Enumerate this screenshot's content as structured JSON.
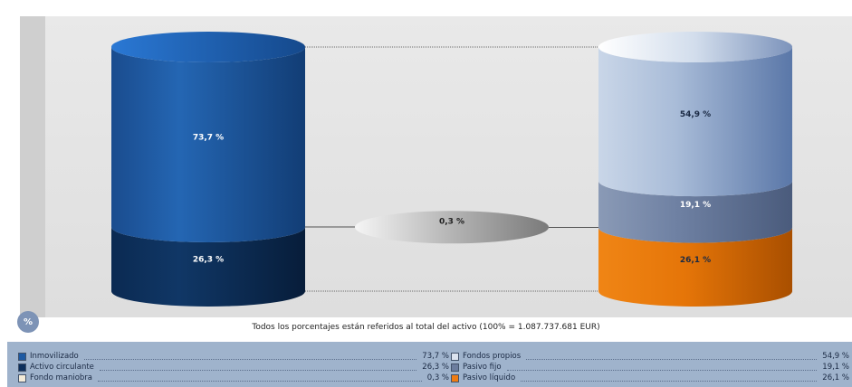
{
  "chart_data": {
    "type": "cylinder-stack",
    "title": "",
    "note": "Todos los porcentajes están referidos al total del activo (100% = 1.087.737.681 EUR)",
    "badge": "%",
    "assets": [
      {
        "name": "Inmovilizado",
        "label": "73,7 %",
        "value": 73.7,
        "color": "#1d5aa3"
      },
      {
        "name": "Activo circulante",
        "label": "26,3 %",
        "value": 26.3,
        "color": "#0d2f5c"
      }
    ],
    "working_capital": {
      "name": "Fondo maniobra",
      "label": "0,3 %",
      "value": 0.3,
      "color": "#f2ead8"
    },
    "liabilities": [
      {
        "name": "Fondos propios",
        "label": "54,9 %",
        "value": 54.9,
        "color": "#dbe3ef"
      },
      {
        "name": "Pasivo fijo",
        "label": "19,1 %",
        "value": 19.1,
        "color": "#6c7d9e"
      },
      {
        "name": "Pasivo líquido",
        "label": "26,1 %",
        "value": 26.1,
        "color": "#ef7c13"
      }
    ]
  }
}
